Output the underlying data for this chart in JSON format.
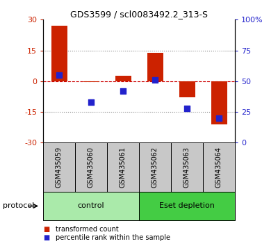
{
  "title": "GDS3599 / scl0083492.2_313-S",
  "samples": [
    "GSM435059",
    "GSM435060",
    "GSM435061",
    "GSM435062",
    "GSM435063",
    "GSM435064"
  ],
  "transformed_counts": [
    27,
    -0.3,
    2.5,
    14,
    -8,
    -21
  ],
  "percentile_ranks_pct": [
    55,
    33,
    42,
    51,
    28,
    20
  ],
  "groups": [
    {
      "label": "control",
      "indices": [
        0,
        1,
        2
      ],
      "color": "#AAEAAA"
    },
    {
      "label": "Eset depletion",
      "indices": [
        3,
        4,
        5
      ],
      "color": "#44CC44"
    }
  ],
  "ylim_left": [
    -30,
    30
  ],
  "ylim_right": [
    0,
    100
  ],
  "yticks_left": [
    -30,
    -15,
    0,
    15,
    30
  ],
  "yticks_right": [
    0,
    25,
    50,
    75,
    100
  ],
  "yticklabels_right": [
    "0",
    "25",
    "50",
    "75",
    "100%"
  ],
  "hlines": [
    15,
    -15
  ],
  "bar_color": "#CC2200",
  "dot_color": "#2222CC",
  "zero_line_color": "#CC0000",
  "grid_color": "#888888",
  "protocol_label": "protocol",
  "legend_items": [
    {
      "label": "transformed count",
      "color": "#CC2200"
    },
    {
      "label": "percentile rank within the sample",
      "color": "#2222CC"
    }
  ],
  "bar_width": 0.5,
  "dot_size": 40,
  "label_color_left": "#CC2200",
  "label_color_right": "#2222CC",
  "sample_box_color": "#C8C8C8"
}
